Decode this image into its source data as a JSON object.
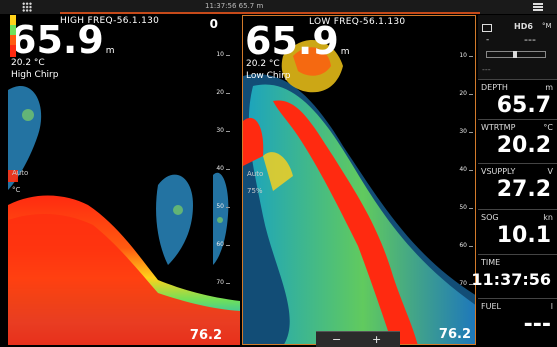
{
  "topbar": {
    "clock": "11:37:56  65.7 m",
    "grid_icon": "grid-icon",
    "menu_icon": "menu-icon"
  },
  "left_panel": {
    "title": "HIGH FREQ-56.1.130",
    "depth_value": "65.9",
    "depth_unit": "m",
    "temperature": "20.2 °C",
    "mode": "High Chirp",
    "scale_top": "0",
    "ticks": [
      "10",
      "20",
      "30",
      "40",
      "50",
      "60",
      "70"
    ],
    "range_bottom": "76.2",
    "auto_label": "Auto",
    "auto_c_label": "°C"
  },
  "right_panel": {
    "title": "LOW FREQ-56.1.130",
    "depth_value": "65.9",
    "depth_unit": "m",
    "temperature": "20.2 °C",
    "mode": "Low Chirp",
    "ticks": [
      "10",
      "20",
      "30",
      "40",
      "50",
      "60",
      "70"
    ],
    "range_bottom": "76.2",
    "auto_label": "Auto",
    "auto_pct_label": "75%"
  },
  "zoom": {
    "minus": "−",
    "plus": "+"
  },
  "sidebar": {
    "header": {
      "source": "HD6",
      "unit": "°M",
      "left_dash": "-",
      "right_dash": "---",
      "dashes": "---"
    },
    "cells": [
      {
        "label": "DEPTH",
        "unit": "m",
        "value": "65.7"
      },
      {
        "label": "WTRTMP",
        "unit": "°C",
        "value": "20.2"
      },
      {
        "label": "VSUPPLY",
        "unit": "V",
        "value": "27.2"
      },
      {
        "label": "SOG",
        "unit": "kn",
        "value": "10.1"
      },
      {
        "label": "TIME",
        "unit": "",
        "value": "11:37:56"
      },
      {
        "label": "FUEL",
        "unit": "l",
        "value": "---"
      }
    ]
  }
}
